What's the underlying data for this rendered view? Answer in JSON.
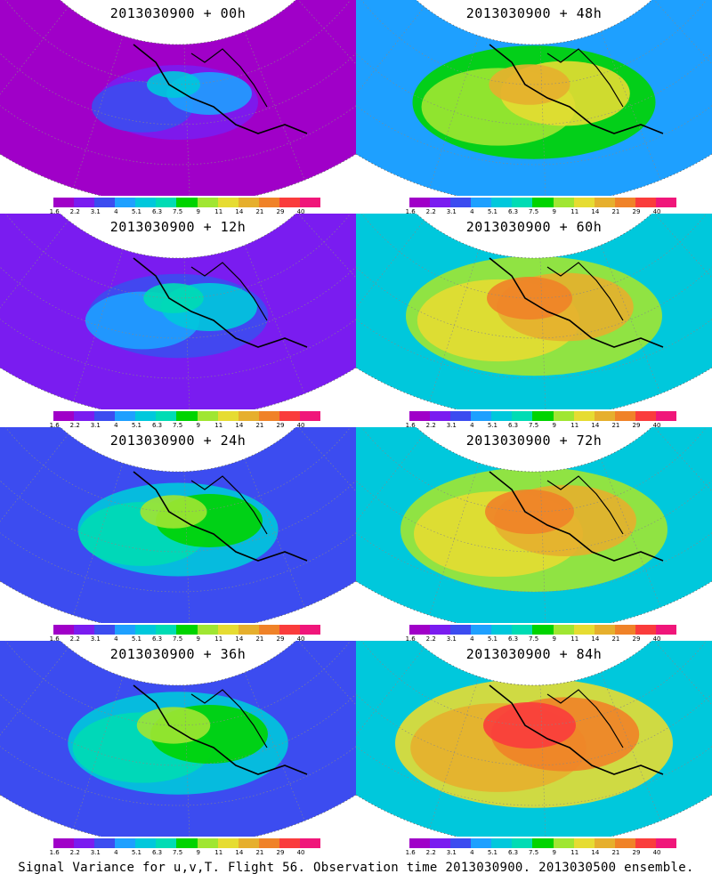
{
  "colorbar": {
    "labels": [
      "1.6",
      "2.2",
      "3.1",
      "4",
      "5.1",
      "6.3",
      "7.5",
      "9",
      "11",
      "14",
      "21",
      "29",
      "40"
    ],
    "colors": [
      "#a000c8",
      "#7a1cf0",
      "#3c4cf0",
      "#1ea0ff",
      "#00c8dc",
      "#00dcb4",
      "#00d400",
      "#a0e632",
      "#e6dc32",
      "#e6af2d",
      "#f08228",
      "#fa3c3c",
      "#f0167a"
    ]
  },
  "panels": [
    {
      "title": "2013030900 + 00h",
      "level": 0.0
    },
    {
      "title": "2013030900 + 48h",
      "level": 0.62
    },
    {
      "title": "2013030900 + 12h",
      "level": 0.15
    },
    {
      "title": "2013030900 + 60h",
      "level": 0.72
    },
    {
      "title": "2013030900 + 24h",
      "level": 0.3
    },
    {
      "title": "2013030900 + 72h",
      "level": 0.8
    },
    {
      "title": "2013030900 + 36h",
      "level": 0.45
    },
    {
      "title": "2013030900 + 84h",
      "level": 0.88
    }
  ],
  "caption": "Signal Variance for u,v,T. Flight 56. Observation time 2013030900. 2013030500 ensemble."
}
